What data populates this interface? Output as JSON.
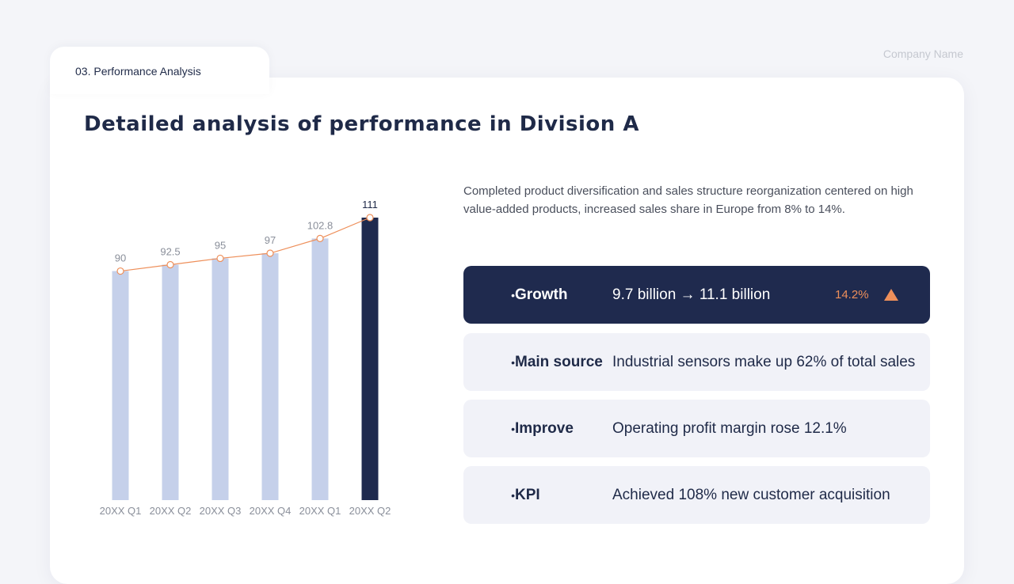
{
  "header": {
    "company": "Company Name",
    "section": "03. Performance Analysis"
  },
  "title": "Detailed analysis of performance in Division A",
  "description": "Completed product diversification and sales structure reorganization centered on high value-added products, increased sales share in Europe from 8% to 14%.",
  "kpis": [
    {
      "label": "Growth",
      "value": "9.7 billion → 11.1 billion",
      "pct": "14.2%",
      "trend": "up-triangle-icon",
      "style": "dark"
    },
    {
      "label": "Main source",
      "value": "Industrial sensors make up 62% of total sales"
    },
    {
      "label": "Improve",
      "value": "Operating profit margin rose 12.1%"
    },
    {
      "label": "KPI",
      "value": "Achieved 108% new customer acquisition"
    }
  ],
  "bullet": "•",
  "colors": {
    "bar": "#c5d0ea",
    "highlight": "#1f2a4e",
    "line": "#ee8f5a",
    "text": "#1f2a48"
  },
  "chart_data": {
    "type": "bar",
    "categories": [
      "20XX Q1",
      "20XX Q2",
      "20XX Q3",
      "20XX Q4",
      "20XX Q1",
      "20XX Q2"
    ],
    "values": [
      90,
      92.5,
      95,
      97,
      102.8,
      111
    ],
    "labels": [
      "90",
      "92.5",
      "95",
      "97",
      "102.8",
      "111"
    ],
    "highlight_index": 5,
    "overlay_line": true,
    "title": "",
    "xlabel": "",
    "ylabel": "",
    "ylim": [
      0,
      111
    ],
    "grid": false
  }
}
